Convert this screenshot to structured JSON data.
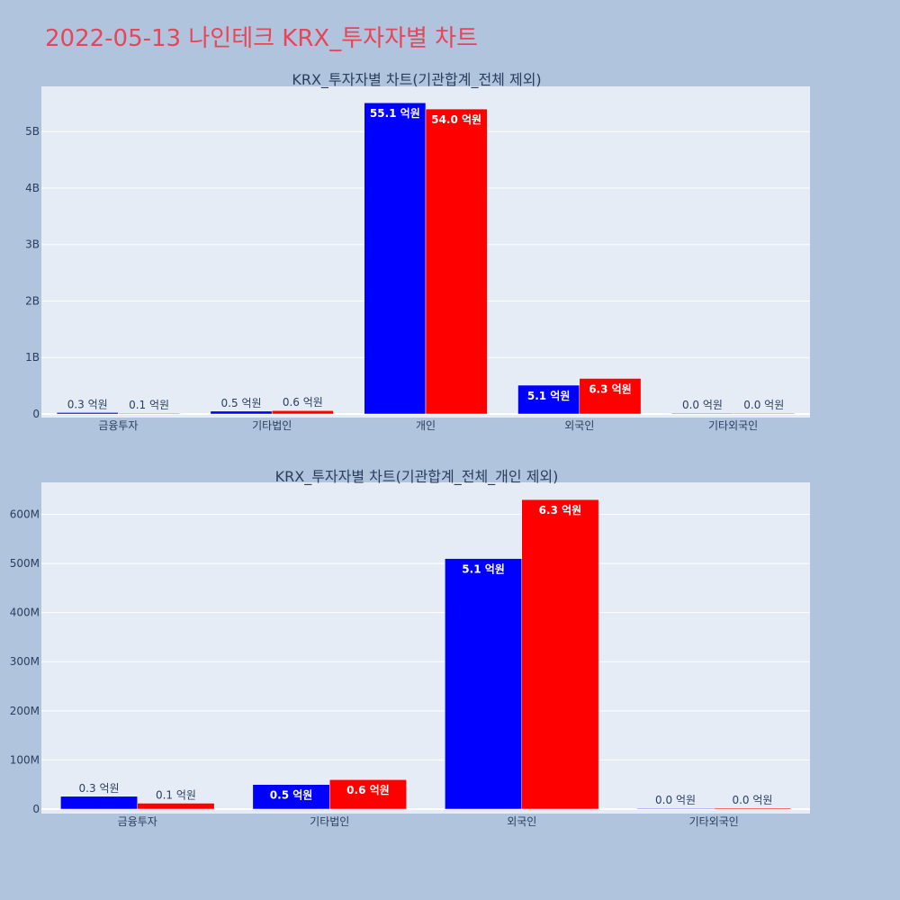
{
  "page_title": "2022-05-13 나인테크 KRX_투자자별 차트",
  "colors": {
    "background": "#b0c4de",
    "plot_bg": "#e5ecf6",
    "title": "#e8445a",
    "series_blue": "#0000ff",
    "series_red": "#ff0000"
  },
  "chart_data": [
    {
      "type": "bar",
      "title": "KRX_투자자별 차트(기관합계_전체 제외)",
      "categories": [
        "금융투자",
        "기타법인",
        "개인",
        "외국인",
        "기타외국인"
      ],
      "series": [
        {
          "color": "#0000ff",
          "values": [
            26000000,
            50000000,
            5510000000,
            510000000,
            1000000
          ],
          "labels": [
            "0.3 억원",
            "0.5 억원",
            "55.1 억원",
            "5.1 억원",
            "0.0 억원"
          ]
        },
        {
          "color": "#ff0000",
          "values": [
            12000000,
            60000000,
            5400000000,
            630000000,
            2000000
          ],
          "labels": [
            "0.1 억원",
            "0.6 억원",
            "54.0 억원",
            "6.3 억원",
            "0.0 억원"
          ]
        }
      ],
      "yticks": [
        0,
        1000000000,
        2000000000,
        3000000000,
        4000000000,
        5000000000
      ],
      "yticklabels": [
        "0",
        "1B",
        "2B",
        "3B",
        "4B",
        "5B"
      ],
      "ylim": [
        0,
        5800000000
      ],
      "grid": true
    },
    {
      "type": "bar",
      "title": "KRX_투자자별 차트(기관합계_전체_개인 제외)",
      "categories": [
        "금융투자",
        "기타법인",
        "외국인",
        "기타외국인"
      ],
      "series": [
        {
          "color": "#0000ff",
          "values": [
            26000000,
            50000000,
            510000000,
            1000000
          ],
          "labels": [
            "0.3 억원",
            "0.5 억원",
            "5.1 억원",
            "0.0 억원"
          ]
        },
        {
          "color": "#ff0000",
          "values": [
            12000000,
            60000000,
            630000000,
            2000000
          ],
          "labels": [
            "0.1 억원",
            "0.6 억원",
            "6.3 억원",
            "0.0 억원"
          ]
        }
      ],
      "yticks": [
        0,
        100000000,
        200000000,
        300000000,
        400000000,
        500000000,
        600000000
      ],
      "yticklabels": [
        "0",
        "100M",
        "200M",
        "300M",
        "400M",
        "500M",
        "600M"
      ],
      "ylim": [
        0,
        665000000
      ],
      "grid": true
    }
  ]
}
